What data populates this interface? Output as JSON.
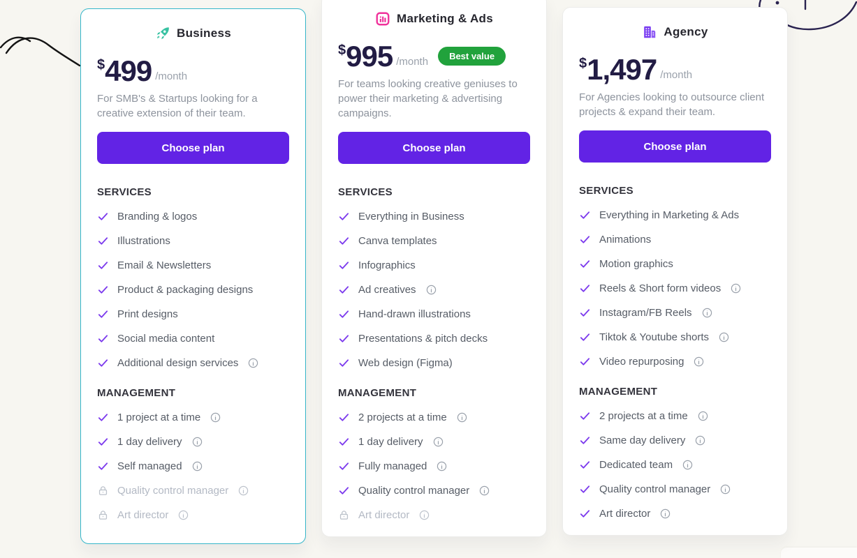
{
  "page": {
    "colors": {
      "background": "#f7f6f1",
      "accent": "#6223e5",
      "check": "#7c3aed",
      "highlight-border": "#35b6c9",
      "badge": "#21a23c",
      "locked": "#b3b9c4",
      "price": "#221c44",
      "text-dark": "#26262e",
      "text-muted": "#8d939d",
      "icon-business": "#38c2a2",
      "icon-marketing": "#f0329b",
      "icon-agency": "#7b3ff2",
      "doodle": "#2a2350"
    }
  },
  "plans": [
    {
      "name": "Business",
      "icon": "rocket-icon",
      "currency": "$",
      "price": "499",
      "period": "/month",
      "description": "For SMB's & Startups looking for a creative extension of their team.",
      "cta": "Choose plan",
      "services_title": "SERVICES",
      "services": [
        {
          "label": "Branding & logos"
        },
        {
          "label": "Illustrations"
        },
        {
          "label": "Email & Newsletters"
        },
        {
          "label": "Product & packaging designs"
        },
        {
          "label": "Print designs"
        },
        {
          "label": "Social media content"
        },
        {
          "label": "Additional design services",
          "info": true
        }
      ],
      "management_title": "MANAGEMENT",
      "management": [
        {
          "label": "1 project at a time",
          "info": true
        },
        {
          "label": "1 day delivery",
          "info": true
        },
        {
          "label": "Self managed",
          "info": true
        },
        {
          "label": "Quality control manager",
          "info": true,
          "locked": true
        },
        {
          "label": "Art director",
          "info": true,
          "locked": true
        }
      ]
    },
    {
      "name": "Marketing & Ads",
      "icon": "bar-chart-icon",
      "currency": "$",
      "price": "995",
      "period": "/month",
      "badge": "Best value",
      "description": "For teams looking creative geniuses to power their marketing & advertising campaigns.",
      "cta": "Choose plan",
      "services_title": "SERVICES",
      "services": [
        {
          "label": "Everything in Business"
        },
        {
          "label": "Canva templates"
        },
        {
          "label": "Infographics"
        },
        {
          "label": "Ad creatives",
          "info": true
        },
        {
          "label": "Hand-drawn illustrations"
        },
        {
          "label": "Presentations & pitch decks"
        },
        {
          "label": "Web design (Figma)"
        }
      ],
      "management_title": "MANAGEMENT",
      "management": [
        {
          "label": "2 projects at a time",
          "info": true
        },
        {
          "label": "1 day delivery",
          "info": true
        },
        {
          "label": "Fully managed",
          "info": true
        },
        {
          "label": "Quality control manager",
          "info": true
        },
        {
          "label": "Art director",
          "info": true,
          "locked": true
        }
      ]
    },
    {
      "name": "Agency",
      "icon": "building-icon",
      "currency": "$",
      "price": "1,497",
      "period": "/month",
      "description": "For Agencies looking to outsource client projects & expand their team.",
      "cta": "Choose plan",
      "services_title": "SERVICES",
      "services": [
        {
          "label": "Everything in Marketing & Ads"
        },
        {
          "label": "Animations"
        },
        {
          "label": "Motion graphics"
        },
        {
          "label": "Reels & Short form videos",
          "info": true
        },
        {
          "label": "Instagram/FB Reels",
          "info": true
        },
        {
          "label": "Tiktok & Youtube shorts",
          "info": true
        },
        {
          "label": "Video repurposing",
          "info": true
        }
      ],
      "management_title": "MANAGEMENT",
      "management": [
        {
          "label": "2 projects at a time",
          "info": true
        },
        {
          "label": "Same day delivery",
          "info": true
        },
        {
          "label": "Dedicated team",
          "info": true
        },
        {
          "label": "Quality control manager",
          "info": true
        },
        {
          "label": "Art director",
          "info": true
        }
      ]
    }
  ]
}
